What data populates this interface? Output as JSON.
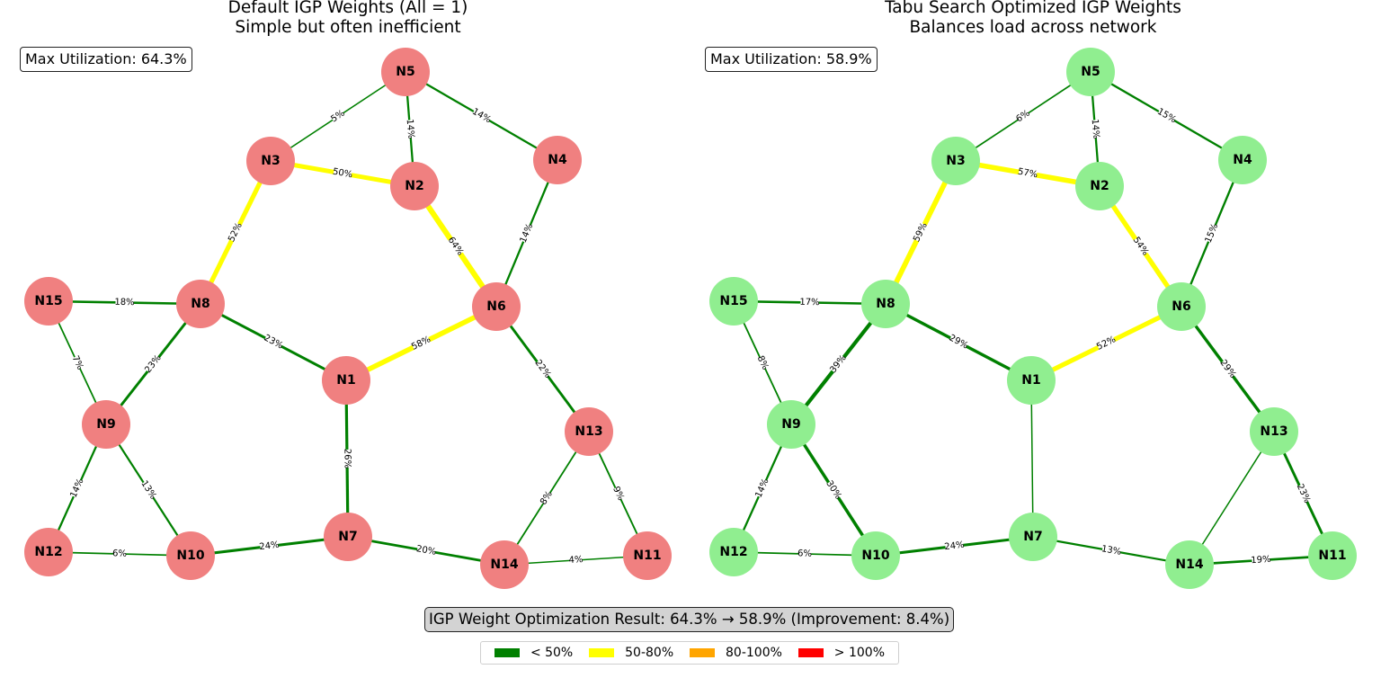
{
  "panels": [
    {
      "title_line1": "Default IGP Weights (All = 1)",
      "title_line2": "Simple but often inefficient",
      "max_utilization": "Max Utilization: 64.3%",
      "node_color": "#f08080",
      "edges": [
        {
          "from": "N5",
          "to": "N3",
          "util": 5
        },
        {
          "from": "N5",
          "to": "N2",
          "util": 14
        },
        {
          "from": "N5",
          "to": "N4",
          "util": 14
        },
        {
          "from": "N3",
          "to": "N2",
          "util": 50
        },
        {
          "from": "N3",
          "to": "N8",
          "util": 52
        },
        {
          "from": "N2",
          "to": "N6",
          "util": 64
        },
        {
          "from": "N4",
          "to": "N6",
          "util": 14
        },
        {
          "from": "N15",
          "to": "N8",
          "util": 18
        },
        {
          "from": "N15",
          "to": "N9",
          "util": 7
        },
        {
          "from": "N8",
          "to": "N9",
          "util": 23
        },
        {
          "from": "N8",
          "to": "N1",
          "util": 23
        },
        {
          "from": "N1",
          "to": "N6",
          "util": 58
        },
        {
          "from": "N6",
          "to": "N13",
          "util": 22
        },
        {
          "from": "N1",
          "to": "N7",
          "util": 26
        },
        {
          "from": "N9",
          "to": "N12",
          "util": 14
        },
        {
          "from": "N9",
          "to": "N10",
          "util": 13
        },
        {
          "from": "N12",
          "to": "N10",
          "util": 6
        },
        {
          "from": "N10",
          "to": "N7",
          "util": 24
        },
        {
          "from": "N7",
          "to": "N14",
          "util": 20
        },
        {
          "from": "N14",
          "to": "N11",
          "util": 4
        },
        {
          "from": "N13",
          "to": "N14",
          "util": 8
        },
        {
          "from": "N13",
          "to": "N11",
          "util": 9
        }
      ]
    },
    {
      "title_line1": "Tabu Search Optimized IGP Weights",
      "title_line2": "Balances load across network",
      "max_utilization": "Max Utilization: 58.9%",
      "node_color": "#90ee90",
      "edges": [
        {
          "from": "N5",
          "to": "N3",
          "util": 6
        },
        {
          "from": "N5",
          "to": "N2",
          "util": 14
        },
        {
          "from": "N5",
          "to": "N4",
          "util": 15
        },
        {
          "from": "N3",
          "to": "N2",
          "util": 57
        },
        {
          "from": "N3",
          "to": "N8",
          "util": 59
        },
        {
          "from": "N2",
          "to": "N6",
          "util": 54
        },
        {
          "from": "N4",
          "to": "N6",
          "util": 15
        },
        {
          "from": "N15",
          "to": "N8",
          "util": 17
        },
        {
          "from": "N15",
          "to": "N9",
          "util": 8
        },
        {
          "from": "N8",
          "to": "N9",
          "util": 39
        },
        {
          "from": "N8",
          "to": "N1",
          "util": 29
        },
        {
          "from": "N1",
          "to": "N6",
          "util": 52
        },
        {
          "from": "N6",
          "to": "N13",
          "util": 29
        },
        {
          "from": "N1",
          "to": "N7",
          "util": null
        },
        {
          "from": "N9",
          "to": "N12",
          "util": 14
        },
        {
          "from": "N9",
          "to": "N10",
          "util": 30
        },
        {
          "from": "N12",
          "to": "N10",
          "util": 6
        },
        {
          "from": "N10",
          "to": "N7",
          "util": 24
        },
        {
          "from": "N7",
          "to": "N14",
          "util": 13
        },
        {
          "from": "N14",
          "to": "N11",
          "util": 19
        },
        {
          "from": "N13",
          "to": "N14",
          "util": null
        },
        {
          "from": "N13",
          "to": "N11",
          "util": 23
        }
      ]
    }
  ],
  "nodes": [
    "N1",
    "N2",
    "N3",
    "N4",
    "N5",
    "N6",
    "N7",
    "N8",
    "N9",
    "N10",
    "N11",
    "N12",
    "N13",
    "N14",
    "N15"
  ],
  "result_text": "IGP Weight Optimization Result: 64.3% → 58.9% (Improvement: 8.4%)",
  "legend": [
    {
      "label": "< 50%",
      "color": "#008000"
    },
    {
      "label": "50-80%",
      "color": "#ffff00"
    },
    {
      "label": "80-100%",
      "color": "#ffa500"
    },
    {
      "label": "> 100%",
      "color": "#ff0000"
    }
  ]
}
